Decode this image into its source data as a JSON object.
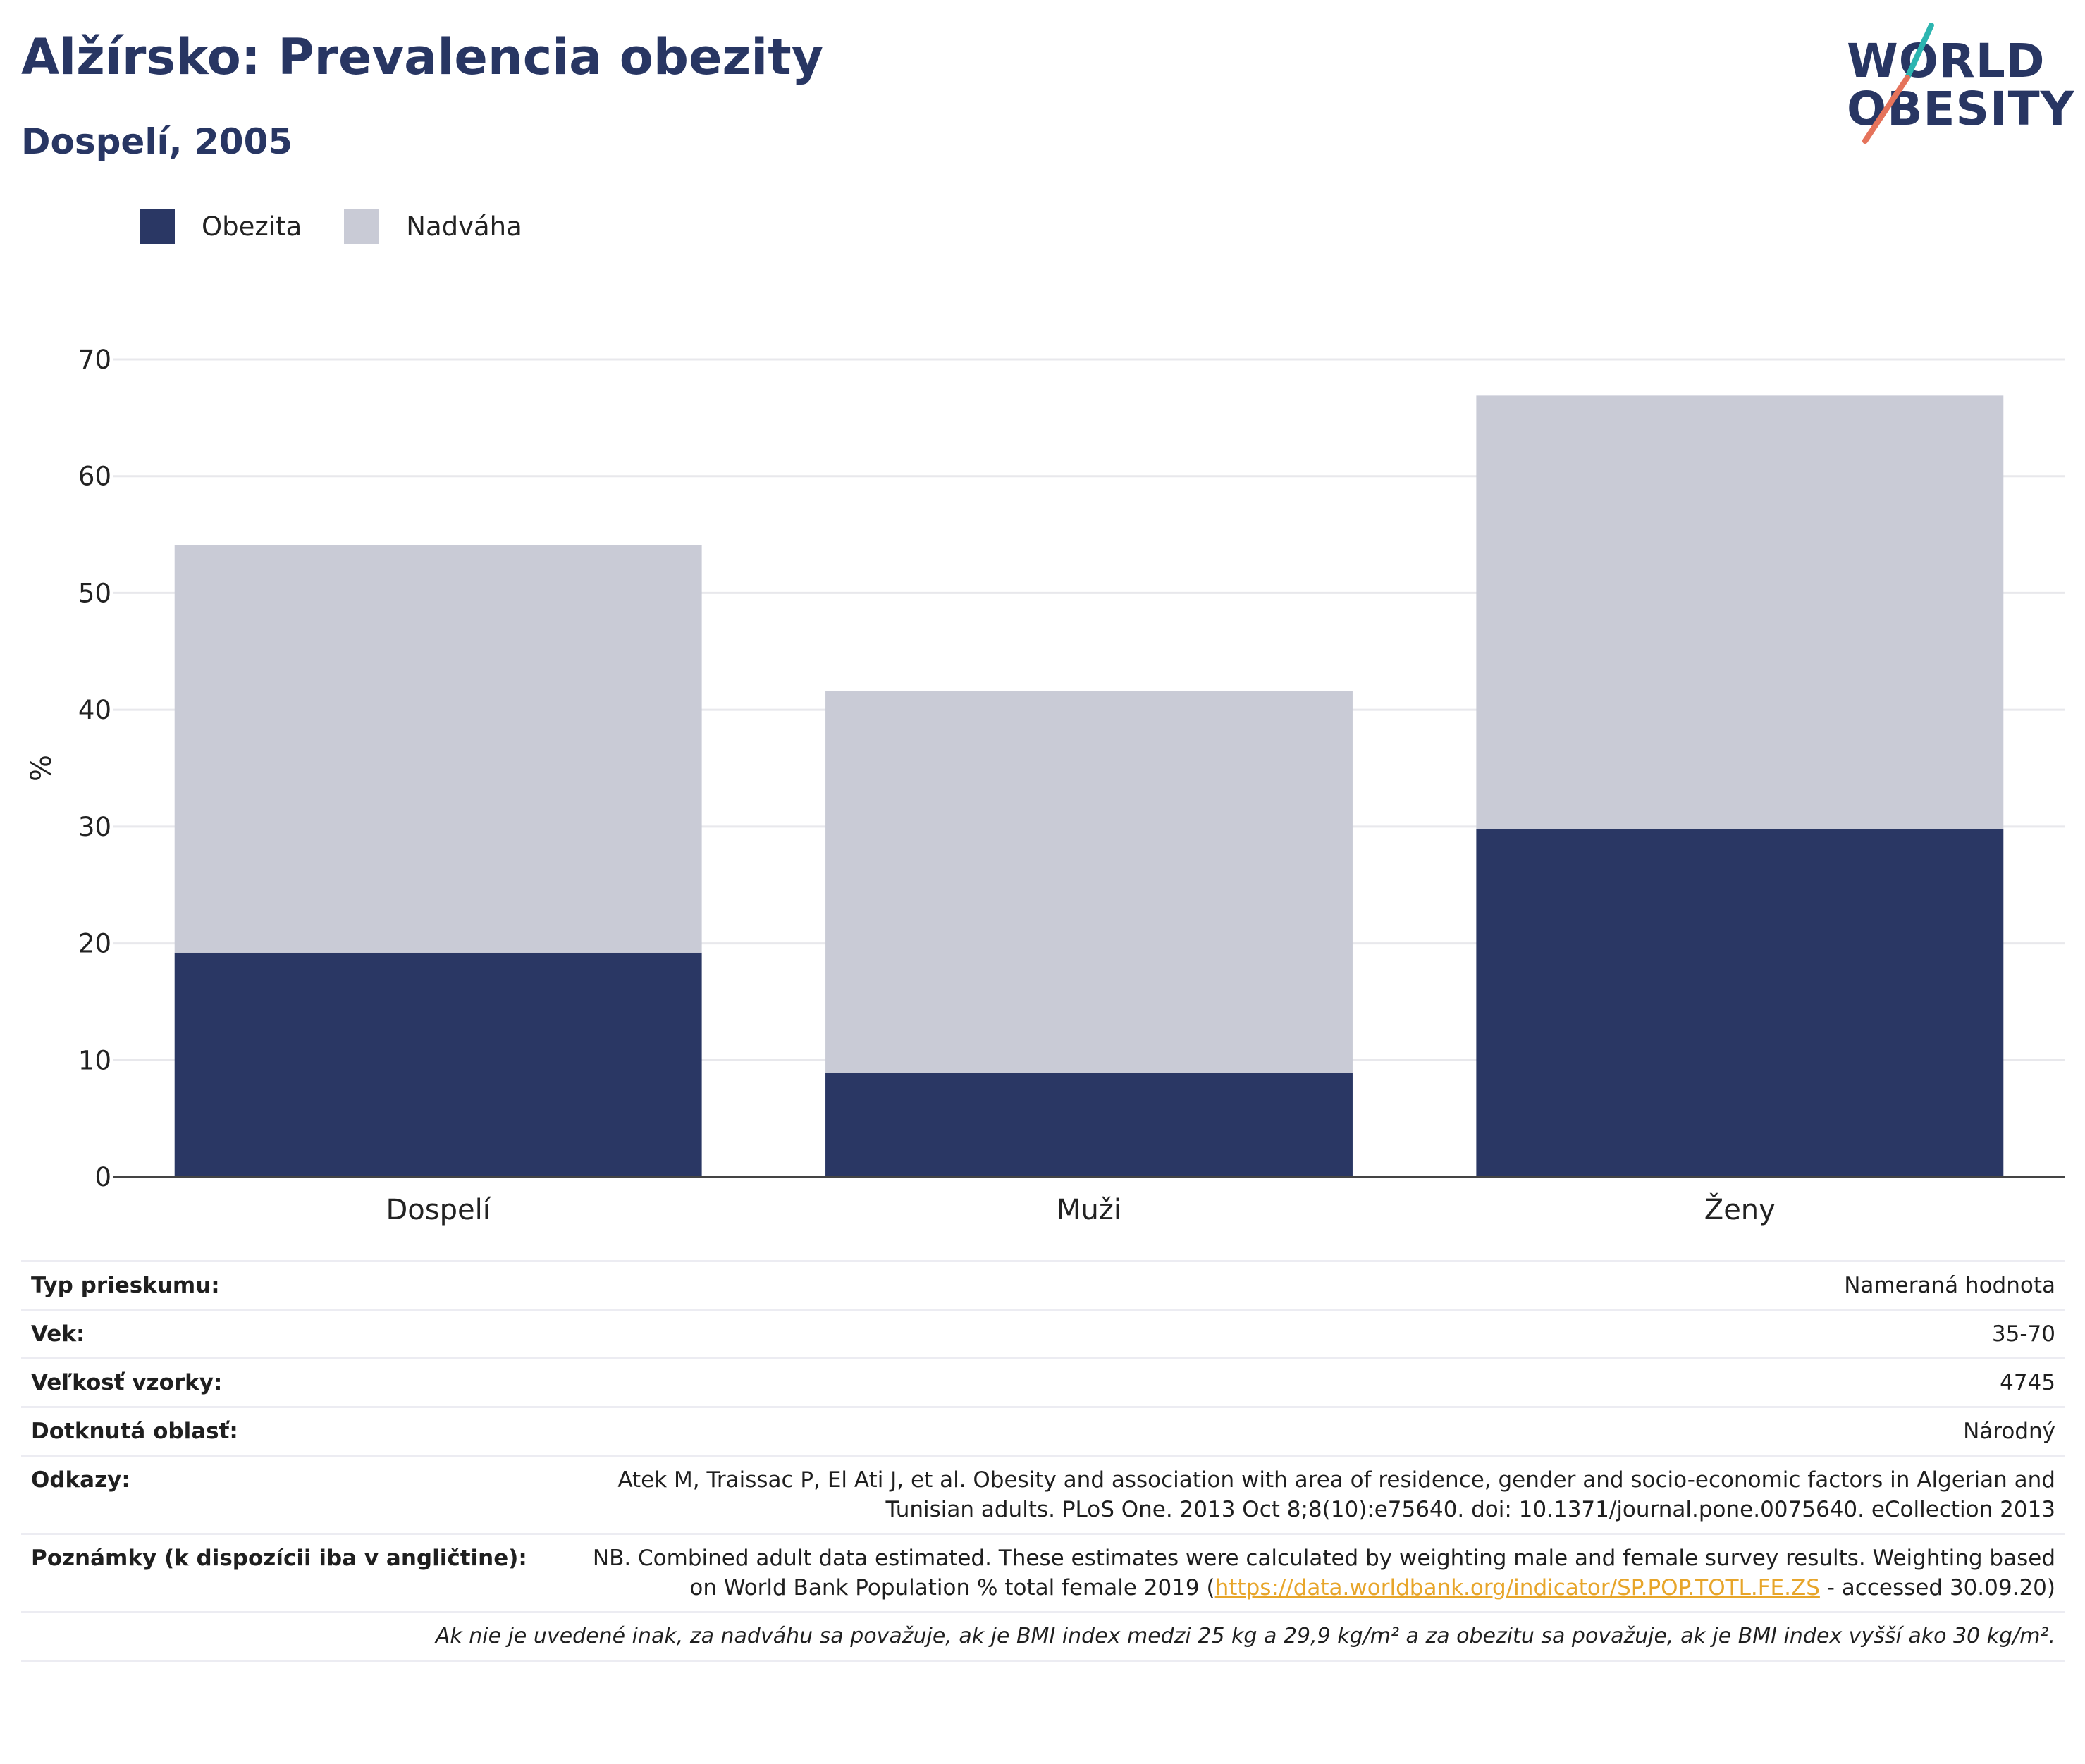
{
  "header": {
    "title": "Alžírsko: Prevalencia obezity",
    "subtitle": "Dospelí, 2005"
  },
  "logo": {
    "line1": "WORLD",
    "line2": "OBESITY",
    "colors": {
      "navy": "#283663",
      "teal": "#2cb5b0",
      "coral": "#e5735b"
    }
  },
  "legend": [
    {
      "label": "Obezita",
      "color": "#2a3764"
    },
    {
      "label": "Nadváha",
      "color": "#c9cbd6"
    }
  ],
  "chart_data": {
    "type": "bar",
    "stacked": true,
    "categories": [
      "Dospelí",
      "Muži",
      "Ženy"
    ],
    "series": [
      {
        "name": "Obezita",
        "values": [
          19.2,
          8.9,
          29.8
        ],
        "color": "#2a3764"
      },
      {
        "name": "Nadváha",
        "values": [
          34.9,
          32.7,
          37.1
        ],
        "color": "#c9cbd6"
      }
    ],
    "ylabel": "%",
    "ylim": [
      0,
      70
    ],
    "yticks": [
      0,
      10,
      20,
      30,
      40,
      50,
      60,
      70
    ],
    "grid": true,
    "legend_position": "top-left"
  },
  "info": {
    "rows": [
      {
        "label": "Typ prieskumu:",
        "value": "Nameraná hodnota"
      },
      {
        "label": "Vek:",
        "value": "35-70"
      },
      {
        "label": "Veľkosť vzorky:",
        "value": "4745"
      },
      {
        "label": "Dotknutá oblasť:",
        "value": "Národný"
      },
      {
        "label": "Odkazy:",
        "value": "Atek M, Traissac P, El Ati J, et al. Obesity and association with area of residence, gender and socio-economic factors in Algerian and Tunisian adults. PLoS One. 2013 Oct 8;8(10):e75640. doi: 10.1371/journal.pone.0075640. eCollection 2013"
      }
    ],
    "notes": {
      "label": "Poznámky (k dispozícii iba v angličtine):",
      "text_before": "NB. Combined adult data estimated. These estimates were calculated by weighting male and female survey results. Weighting based on World Bank Population % total female 2019 (",
      "link": "https://data.worldbank.org/indicator/SP.POP.TOTL.FE.ZS",
      "text_after": " - accessed 30.09.20)"
    },
    "footnote": "Ak nie je uvedené inak, za nadváhu sa považuje, ak je BMI index medzi 25 kg a 29,9 kg/m² a za obezitu sa považuje, ak je BMI index vyšší ako 30 kg/m²."
  }
}
